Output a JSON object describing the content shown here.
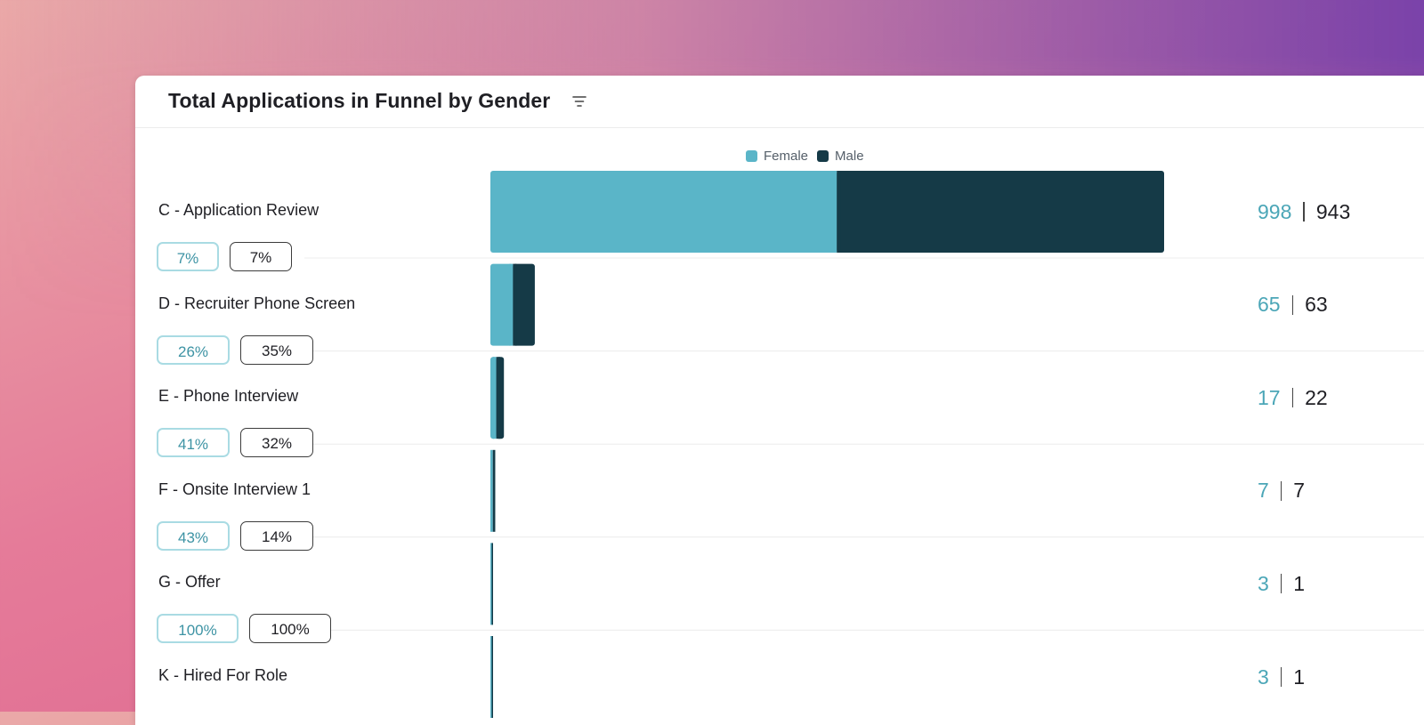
{
  "title": "Total Applications in Funnel by Gender",
  "icons": {
    "filter": "filter-lines-icon"
  },
  "colors": {
    "female": "#5ab5c8",
    "male": "#153a47"
  },
  "chart_data": {
    "type": "bar",
    "orientation": "horizontal",
    "stacked": true,
    "title": "Total Applications in Funnel by Gender",
    "legend": [
      "Female",
      "Male"
    ],
    "categories": [
      "C - Application Review",
      "D - Recruiter Phone Screen",
      "E - Phone Interview",
      "F - Onsite Interview 1",
      "G - Offer",
      "K - Hired For Role"
    ],
    "series": [
      {
        "name": "Female",
        "values": [
          998,
          65,
          17,
          7,
          3,
          3
        ]
      },
      {
        "name": "Male",
        "values": [
          943,
          63,
          22,
          7,
          1,
          1
        ]
      }
    ],
    "conversion": {
      "female": [
        "7%",
        "26%",
        "41%",
        "43%",
        "100%"
      ],
      "male": [
        "7%",
        "35%",
        "32%",
        "14%",
        "100%"
      ]
    },
    "xlim": [
      0,
      1941
    ]
  }
}
